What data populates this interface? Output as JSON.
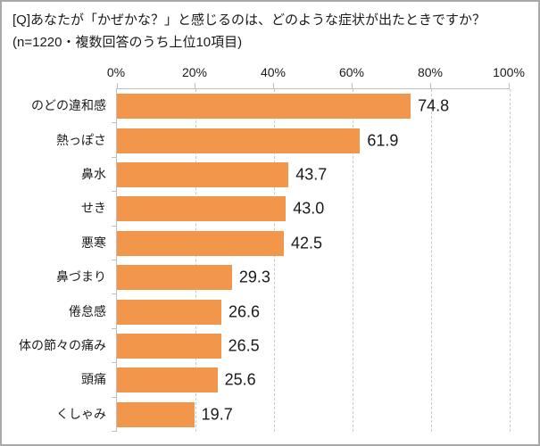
{
  "title": "[Q]あなたが「かぜかな？」と感じるのは、どのような症状が出たときですか？",
  "subtitle": "(n=1220・複数回答のうち上位10項目)",
  "chart_data": {
    "type": "bar",
    "orientation": "horizontal",
    "title": "[Q]あなたが「かぜかな？」と感じるのは、どのような症状が出たときですか？",
    "subtitle": "(n=1220・複数回答のうち上位10項目)",
    "categories": [
      "のどの違和感",
      "熱っぽさ",
      "鼻水",
      "せき",
      "悪寒",
      "鼻づまり",
      "倦怠感",
      "体の節々の痛み",
      "頭痛",
      "くしゃみ"
    ],
    "values": [
      74.8,
      61.9,
      43.7,
      43.0,
      42.5,
      29.3,
      26.6,
      26.5,
      25.6,
      19.7
    ],
    "value_labels": [
      "74.8",
      "61.9",
      "43.7",
      "43.0",
      "42.5",
      "29.3",
      "26.6",
      "26.5",
      "25.6",
      "19.7"
    ],
    "x_axis": {
      "min": 0,
      "max": 100,
      "tick_values": [
        0,
        20,
        40,
        60,
        80,
        100
      ],
      "ticks": [
        "0%",
        "20%",
        "40%",
        "60%",
        "80%",
        "100%"
      ]
    },
    "bar_color": "#f2964b",
    "grid": "dashed-vertical",
    "legend": "none"
  }
}
